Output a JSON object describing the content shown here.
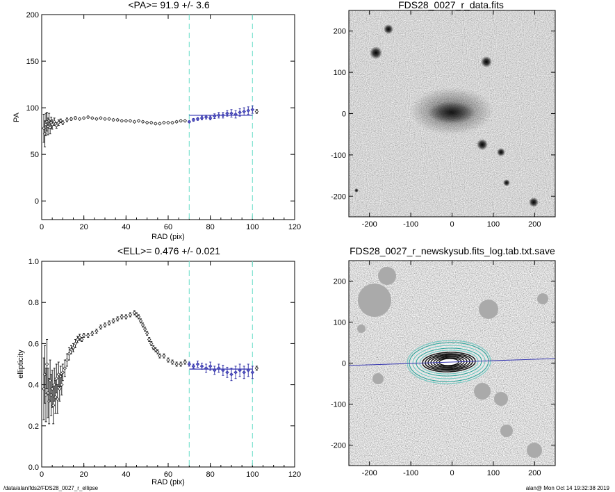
{
  "footer": {
    "left": "/data/alan/fds2/FDS28_0027_r_ellipse",
    "right": "alan@  Mon Oct 14 19:32:38 2019"
  },
  "chart_data": [
    {
      "type": "scatter",
      "title": "<PA>=  91.9 +/-   3.6",
      "xlabel": "RAD (pix)",
      "ylabel": "PA",
      "xlim": [
        0,
        120
      ],
      "ylim": [
        -20,
        200
      ],
      "xticks": [
        "0",
        "20",
        "40",
        "60",
        "80",
        "100",
        "120"
      ],
      "yticks": [
        "0",
        "50",
        "100",
        "150",
        "200"
      ],
      "fit_range": [
        70,
        100
      ],
      "mean_value": 91.9,
      "x": [
        1,
        1.5,
        2,
        2.5,
        3,
        3.5,
        4,
        4.5,
        5,
        6,
        7,
        8,
        9,
        10,
        12,
        14,
        16,
        18,
        20,
        22,
        24,
        26,
        28,
        30,
        32,
        34,
        36,
        38,
        40,
        42,
        44,
        46,
        48,
        50,
        52,
        54,
        56,
        58,
        60,
        62,
        64,
        66,
        68,
        70,
        72,
        74,
        76,
        78,
        80,
        82,
        84,
        86,
        88,
        90,
        92,
        94,
        96,
        98,
        100,
        102
      ],
      "y": [
        78,
        72,
        82,
        85,
        80,
        86,
        79,
        84,
        82,
        85,
        81,
        84,
        86,
        84,
        87,
        88,
        89,
        88,
        89,
        90,
        89,
        88,
        89,
        88,
        88,
        87,
        87,
        86,
        86,
        86,
        85,
        86,
        85,
        84,
        84,
        83,
        83,
        84,
        84,
        84,
        85,
        86,
        86,
        85,
        87,
        88,
        89,
        90,
        89,
        91,
        92,
        92,
        94,
        94,
        93,
        95,
        96,
        97,
        98,
        96
      ],
      "errors": [
        15,
        14,
        12,
        10,
        9,
        8,
        7,
        6,
        5,
        4,
        3,
        3,
        2,
        2,
        2,
        1.5,
        1.5,
        1,
        1,
        1,
        1,
        1,
        1,
        1,
        1,
        1,
        1,
        1,
        1,
        1,
        1,
        1,
        1,
        1,
        1,
        1,
        1,
        1,
        1,
        1,
        1,
        1,
        1,
        1,
        1.5,
        1.5,
        2,
        2,
        2,
        2.5,
        3,
        3,
        3,
        4,
        4,
        4,
        4,
        4,
        4,
        2
      ]
    },
    {
      "type": "image",
      "title": "FDS28_0027_r_data.fits",
      "xlim": [
        -250,
        250
      ],
      "ylim": [
        -250,
        250
      ],
      "xticks": [
        "-200",
        "-100",
        "0",
        "100",
        "200"
      ],
      "yticks": [
        "-200",
        "-100",
        "0",
        "100",
        "200"
      ]
    },
    {
      "type": "scatter",
      "title": "<ELL>= 0.476 +/-  0.021",
      "xlabel": "RAD (pix)",
      "ylabel": "ellipticity",
      "xlim": [
        0,
        120
      ],
      "ylim": [
        0.0,
        1.0
      ],
      "xticks": [
        "0",
        "20",
        "40",
        "60",
        "80",
        "100",
        "120"
      ],
      "yticks": [
        "0.0",
        "0.2",
        "0.4",
        "0.6",
        "0.8",
        "1.0"
      ],
      "fit_range": [
        70,
        100
      ],
      "mean_value": 0.476,
      "x": [
        1,
        1.5,
        2,
        2.5,
        3,
        3.5,
        4,
        4.5,
        5,
        5.5,
        6,
        6.5,
        7,
        7.5,
        8,
        8.5,
        9,
        9.5,
        10,
        11,
        12,
        13,
        14,
        15,
        16,
        17,
        18,
        19,
        20,
        22,
        24,
        26,
        28,
        30,
        32,
        34,
        36,
        38,
        40,
        42,
        44,
        45,
        46,
        47,
        48,
        49,
        50,
        51,
        52,
        53,
        54,
        55,
        56,
        58,
        60,
        62,
        64,
        66,
        68,
        70,
        72,
        74,
        76,
        78,
        80,
        82,
        84,
        86,
        88,
        90,
        92,
        94,
        96,
        98,
        100,
        102
      ],
      "y": [
        0.38,
        0.45,
        0.35,
        0.5,
        0.36,
        0.32,
        0.42,
        0.35,
        0.38,
        0.3,
        0.4,
        0.34,
        0.43,
        0.33,
        0.45,
        0.38,
        0.44,
        0.4,
        0.46,
        0.48,
        0.52,
        0.55,
        0.57,
        0.58,
        0.6,
        0.62,
        0.63,
        0.62,
        0.64,
        0.64,
        0.65,
        0.66,
        0.68,
        0.69,
        0.7,
        0.71,
        0.72,
        0.73,
        0.73,
        0.74,
        0.75,
        0.74,
        0.73,
        0.71,
        0.69,
        0.67,
        0.65,
        0.62,
        0.6,
        0.58,
        0.57,
        0.56,
        0.54,
        0.54,
        0.52,
        0.51,
        0.5,
        0.5,
        0.51,
        0.5,
        0.49,
        0.5,
        0.49,
        0.48,
        0.49,
        0.47,
        0.48,
        0.47,
        0.46,
        0.45,
        0.46,
        0.47,
        0.46,
        0.47,
        0.46,
        0.48
      ],
      "errors": [
        0.15,
        0.14,
        0.13,
        0.12,
        0.12,
        0.11,
        0.1,
        0.1,
        0.09,
        0.09,
        0.08,
        0.08,
        0.07,
        0.07,
        0.06,
        0.06,
        0.05,
        0.05,
        0.04,
        0.04,
        0.03,
        0.03,
        0.02,
        0.02,
        0.02,
        0.015,
        0.015,
        0.01,
        0.01,
        0.01,
        0.01,
        0.01,
        0.01,
        0.01,
        0.01,
        0.01,
        0.01,
        0.01,
        0.01,
        0.01,
        0.01,
        0.01,
        0.01,
        0.01,
        0.01,
        0.01,
        0.01,
        0.01,
        0.01,
        0.01,
        0.01,
        0.01,
        0.01,
        0.01,
        0.01,
        0.01,
        0.01,
        0.01,
        0.01,
        0.01,
        0.01,
        0.015,
        0.015,
        0.02,
        0.02,
        0.02,
        0.02,
        0.025,
        0.025,
        0.03,
        0.03,
        0.03,
        0.03,
        0.03,
        0.03,
        0.01
      ]
    },
    {
      "type": "image",
      "title": "FDS28_0027_r_newskysub.fits_log.tab.txt.save",
      "xlim": [
        -250,
        250
      ],
      "ylim": [
        -250,
        250
      ],
      "xticks": [
        "-200",
        "-100",
        "0",
        "100",
        "200"
      ],
      "yticks": [
        "-200",
        "-100",
        "0",
        "100",
        "200"
      ]
    }
  ]
}
